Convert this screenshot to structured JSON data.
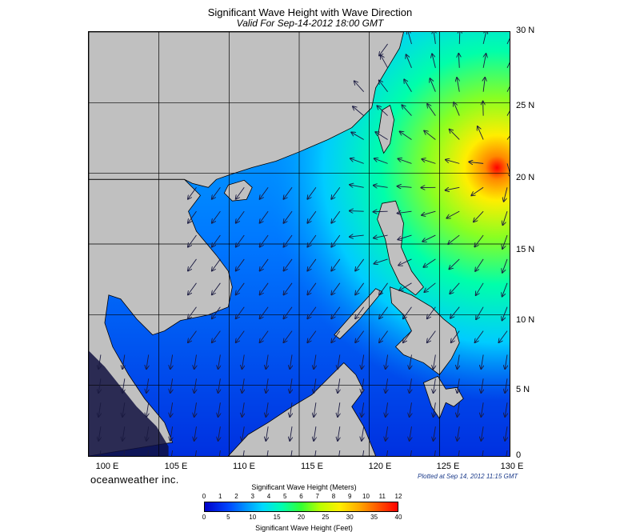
{
  "title": "Significant Wave Height with Wave Direction",
  "subtitle": "Valid For Sep-14-2012 18:00 GMT",
  "brand": "oceanweather inc.",
  "plotted_text": "Plotted at Sep 14, 2012 11:15 GMT",
  "map": {
    "lon_range": [
      100,
      130
    ],
    "lat_range": [
      0,
      30
    ],
    "lon_labels": [
      "100 E",
      "105 E",
      "110 E",
      "115 E",
      "120 E",
      "125 E",
      "130 E"
    ],
    "lat_labels": [
      "30 N",
      "25 N",
      "20 N",
      "15 N",
      "10 N",
      "5 N",
      "0"
    ],
    "land_color": "#c0c0c0",
    "storm_center": {
      "lon": 129.5,
      "lat": 21.1
    }
  },
  "colorbar": {
    "title_top": "Significant Wave Height (Meters)",
    "title_bottom": "Significant Wave Height (Feet)",
    "meters_ticks": [
      "0",
      "1",
      "2",
      "3",
      "4",
      "5",
      "6",
      "7",
      "8",
      "9",
      "10",
      "11",
      "12"
    ],
    "feet_ticks": [
      "0",
      "5",
      "10",
      "15",
      "20",
      "25",
      "30",
      "35",
      "40"
    ]
  }
}
